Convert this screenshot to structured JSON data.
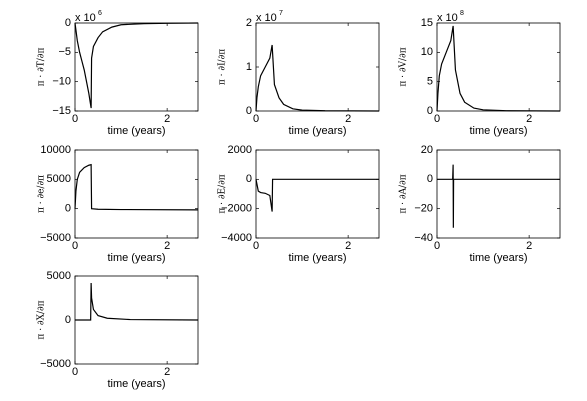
{
  "chart_data": [
    {
      "type": "line",
      "ylabel": "π · ∂T/∂π",
      "xlabel": "time (years)",
      "offset_text": "x 10",
      "offset_power": "6",
      "xlim": [
        0,
        2.67
      ],
      "xticks": [
        0,
        2
      ],
      "ylim": [
        -15,
        0
      ],
      "yticks": [
        {
          "value": -15,
          "label": "−15"
        },
        {
          "value": -10,
          "label": "−10"
        },
        {
          "value": -5,
          "label": "−5"
        },
        0
      ],
      "color": "#000000",
      "x": [
        0,
        0.05,
        0.1,
        0.15,
        0.2,
        0.25,
        0.3,
        0.35,
        0.36,
        0.4,
        0.5,
        0.6,
        0.8,
        1.0,
        1.5,
        2.0,
        2.67
      ],
      "values": [
        0,
        -3,
        -5,
        -6.5,
        -8,
        -10,
        -12,
        -14.5,
        -6,
        -4,
        -2.5,
        -1.5,
        -0.7,
        -0.3,
        -0.1,
        -0.05,
        0
      ]
    },
    {
      "type": "line",
      "ylabel": "π · ∂I/∂π",
      "xlabel": "time (years)",
      "offset_text": "x 10",
      "offset_power": "7",
      "xlim": [
        0,
        2.67
      ],
      "xticks": [
        0,
        2
      ],
      "ylim": [
        0,
        2
      ],
      "yticks": [
        0,
        1,
        2
      ],
      "color": "#000000",
      "x": [
        0,
        0.02,
        0.05,
        0.1,
        0.2,
        0.3,
        0.35,
        0.4,
        0.5,
        0.6,
        0.8,
        1.0,
        1.5,
        2.67
      ],
      "values": [
        0,
        0.3,
        0.55,
        0.8,
        1.0,
        1.2,
        1.5,
        0.6,
        0.3,
        0.15,
        0.05,
        0.02,
        0.005,
        0
      ]
    },
    {
      "type": "line",
      "ylabel": "π · ∂V/∂π",
      "xlabel": "time (years)",
      "offset_text": "x 10",
      "offset_power": "8",
      "xlim": [
        0,
        2.67
      ],
      "xticks": [
        0,
        2
      ],
      "ylim": [
        0,
        15
      ],
      "yticks": [
        0,
        5,
        10,
        15
      ],
      "color": "#000000",
      "x": [
        0,
        0.02,
        0.05,
        0.1,
        0.2,
        0.3,
        0.35,
        0.4,
        0.5,
        0.6,
        0.8,
        1.0,
        1.5,
        2.67
      ],
      "values": [
        0,
        3,
        6,
        8,
        10,
        12,
        14.5,
        7,
        3,
        1.5,
        0.5,
        0.2,
        0.05,
        0
      ]
    },
    {
      "type": "line",
      "ylabel": "π · ∂e/∂π",
      "xlabel": "time (years)",
      "xlim": [
        0,
        2.67
      ],
      "xticks": [
        0,
        2
      ],
      "ylim": [
        -5000,
        10000
      ],
      "yticks": [
        {
          "value": -5000,
          "label": "−5000"
        },
        0,
        5000,
        10000
      ],
      "color": "#000000",
      "x": [
        0,
        0.02,
        0.05,
        0.1,
        0.2,
        0.3,
        0.35,
        0.36,
        0.5,
        1.0,
        2.67
      ],
      "values": [
        0,
        3000,
        5000,
        6200,
        7000,
        7400,
        7500,
        0,
        -100,
        -150,
        -200
      ]
    },
    {
      "type": "line",
      "ylabel": "π · ∂E/∂π",
      "xlabel": "time (years)",
      "xlim": [
        0,
        2.67
      ],
      "xticks": [
        0,
        2
      ],
      "ylim": [
        -4000,
        2000
      ],
      "yticks": [
        {
          "value": -4000,
          "label": "−4000"
        },
        {
          "value": -2000,
          "label": "−2000"
        },
        0,
        2000
      ],
      "color": "#000000",
      "x": [
        0,
        0.05,
        0.1,
        0.2,
        0.3,
        0.35,
        0.36,
        0.5,
        2.67
      ],
      "values": [
        0,
        -800,
        -900,
        -950,
        -1100,
        -2200,
        0,
        0,
        0
      ]
    },
    {
      "type": "line",
      "ylabel": "π · ∂A/∂π",
      "xlabel": "time (years)",
      "xlim": [
        0,
        2.67
      ],
      "xticks": [
        0,
        2
      ],
      "ylim": [
        -40,
        20
      ],
      "yticks": [
        {
          "value": -40,
          "label": "−40"
        },
        {
          "value": -20,
          "label": "−20"
        },
        0,
        20
      ],
      "color": "#000000",
      "x": [
        0,
        0.34,
        0.35,
        0.355,
        0.36,
        0.5,
        2.67
      ],
      "values": [
        0,
        0,
        10,
        -33,
        0,
        0,
        0
      ]
    },
    {
      "type": "line",
      "ylabel": "π · ∂X/∂π",
      "xlabel": "time (years)",
      "xlim": [
        0,
        2.67
      ],
      "xticks": [
        0,
        2
      ],
      "ylim": [
        -5000,
        5000
      ],
      "yticks": [
        {
          "value": -5000,
          "label": "−5000"
        },
        0,
        5000
      ],
      "color": "#000000",
      "x": [
        0,
        0.34,
        0.35,
        0.36,
        0.4,
        0.5,
        0.7,
        1.2,
        2.67
      ],
      "values": [
        0,
        0,
        4200,
        2500,
        1200,
        500,
        200,
        50,
        0
      ]
    }
  ]
}
